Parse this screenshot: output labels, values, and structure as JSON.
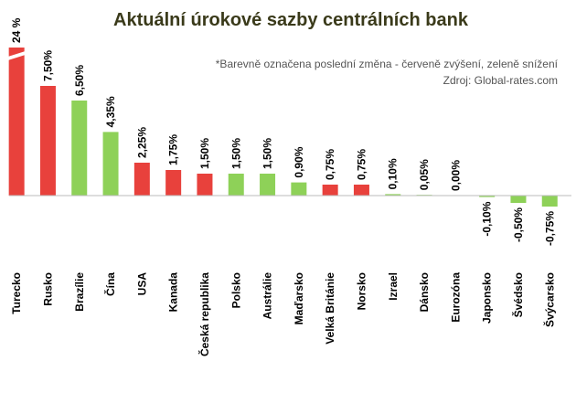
{
  "chart_data": {
    "type": "bar",
    "title": "Aktuální úrokové sazby centrálních bank",
    "notes": [
      "*Barevně označena poslední změna - červeně zvýšení, zeleně snížení",
      "Zdroj: Global-rates.com"
    ],
    "categories": [
      "Turecko",
      "Rusko",
      "Brazílie",
      "Čína",
      "USA",
      "Kanada",
      "Česká republika",
      "Polsko",
      "Austrálie",
      "Maďarsko",
      "Velká Británie",
      "Norsko",
      "Izrael",
      "Dánsko",
      "Eurozóna",
      "Japonsko",
      "Švédsko",
      "Švýcarsko"
    ],
    "values": [
      24,
      7.5,
      6.5,
      4.35,
      2.25,
      1.75,
      1.5,
      1.5,
      1.5,
      0.9,
      0.75,
      0.75,
      0.1,
      0.05,
      0,
      -0.1,
      -0.5,
      -0.75
    ],
    "value_labels": [
      "24 %",
      "7,50%",
      "6,50%",
      "4,35%",
      "2,25%",
      "1,75%",
      "1,50%",
      "1,50%",
      "1,50%",
      "0,90%",
      "0,75%",
      "0,75%",
      "0,10%",
      "0,05%",
      "0,00%",
      "-0,10%",
      "-0,50%",
      "-0,75%"
    ],
    "colors": [
      "#e8413c",
      "#e8413c",
      "#8ed158",
      "#8ed158",
      "#e8413c",
      "#e8413c",
      "#e8413c",
      "#8ed158",
      "#8ed158",
      "#8ed158",
      "#e8413c",
      "#e8413c",
      "#8ed158",
      "#8ed158",
      "#8ed158",
      "#8ed158",
      "#8ed158",
      "#8ed158"
    ]
  }
}
